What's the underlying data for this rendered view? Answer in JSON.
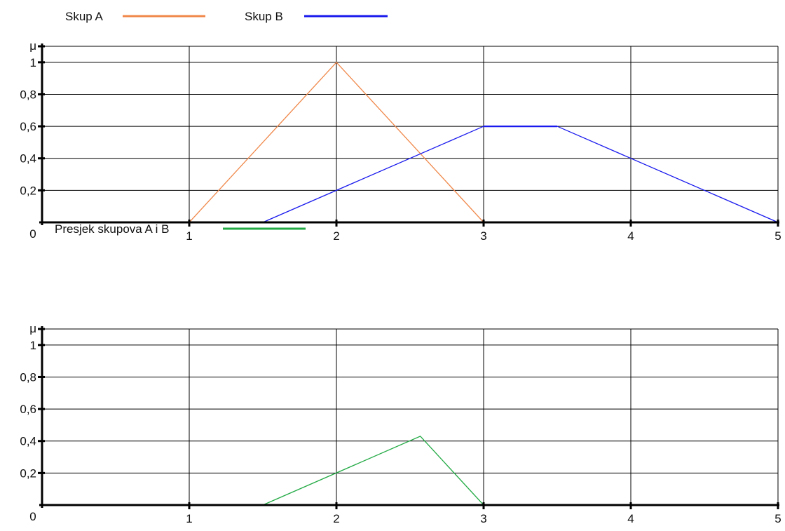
{
  "chart_data": [
    {
      "type": "line",
      "ylabel": "μ",
      "origin_label": "0",
      "xlim": [
        0,
        5
      ],
      "ylim": [
        0,
        1.1
      ],
      "x_ticks": [
        "1",
        "2",
        "3",
        "4",
        "5"
      ],
      "y_ticks": [
        "0,2",
        "0,4",
        "0,6",
        "0,8",
        "1"
      ],
      "y_tick_values": [
        0.2,
        0.4,
        0.6,
        0.8,
        1.0
      ],
      "x_tick_values": [
        1,
        2,
        3,
        4,
        5
      ],
      "grid": true,
      "legend_position": "top-left",
      "series": [
        {
          "name": "Skup A",
          "color": "#f0884a",
          "x": [
            0,
            1,
            2,
            3,
            5
          ],
          "y": [
            0,
            0,
            1,
            0,
            0
          ]
        },
        {
          "name": "Skup B",
          "color": "#1a1aee",
          "x": [
            0,
            1.5,
            3,
            3.5,
            5
          ],
          "y": [
            0,
            0,
            0.6,
            0.6,
            0
          ]
        }
      ]
    },
    {
      "type": "line",
      "ylabel": "μ",
      "origin_label": "0",
      "xlim": [
        0,
        5
      ],
      "ylim": [
        0,
        1.1
      ],
      "x_ticks": [
        "1",
        "2",
        "3",
        "4",
        "5"
      ],
      "y_ticks": [
        "0,2",
        "0,4",
        "0,6",
        "0,8",
        "1"
      ],
      "y_tick_values": [
        0.2,
        0.4,
        0.6,
        0.8,
        1.0
      ],
      "x_tick_values": [
        1,
        2,
        3,
        4,
        5
      ],
      "grid": true,
      "legend_position": "top-left",
      "series": [
        {
          "name": "Presjek skupova A i B",
          "color": "#22aa44",
          "x": [
            0,
            1.5,
            2.57,
            3,
            5
          ],
          "y": [
            0,
            0,
            0.43,
            0,
            0
          ]
        }
      ]
    }
  ]
}
